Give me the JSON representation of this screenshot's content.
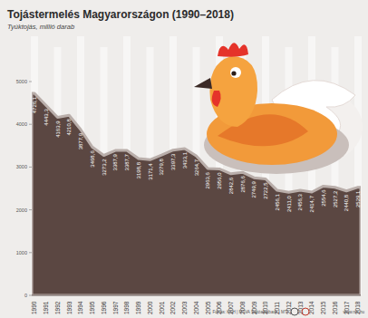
{
  "chart_data": {
    "type": "area",
    "title": "Tojástermelés Magyarországon (1990–2018)",
    "subtitle": "Tyúktojás, millió darab",
    "categories": [
      "1990",
      "1991",
      "1992",
      "1993",
      "1994",
      "1995",
      "1996",
      "1997",
      "1998",
      "1999",
      "2000",
      "2001",
      "2002",
      "2003",
      "2004",
      "2005",
      "2006",
      "2007",
      "2008",
      "2009",
      "2010",
      "2011",
      "2012",
      "2013",
      "2014",
      "2015",
      "2016",
      "2017",
      "2018"
    ],
    "values": [
      4726.1,
      4443.3,
      4163.9,
      4210.8,
      3877.9,
      3468.6,
      3273.2,
      3387.9,
      3387.7,
      3198.8,
      3171.4,
      3279.8,
      3397.3,
      3433.1,
      3264.7,
      2963.6,
      2956.0,
      2842.6,
      2876.6,
      2749.9,
      2722.5,
      2456.1,
      2411.0,
      2456.3,
      2414.7,
      2554.6,
      2527.2,
      2440.8,
      2529.1
    ],
    "value_labels": [
      "4726,1",
      "4443,3",
      "4163,9",
      "4210,8",
      "3877,9",
      "3468,6",
      "3273,2",
      "3387,9",
      "3387,7",
      "3198,8",
      "3171,4",
      "3279,8",
      "3397,3",
      "3433,1",
      "3264,7",
      "2963,6",
      "2956,0",
      "2842,6",
      "2876,6",
      "2749,9",
      "2722,5",
      "2456,1",
      "2411,0",
      "2456,3",
      "2414,7",
      "2554,6",
      "2527,2",
      "2440,8",
      "2529,1"
    ],
    "color": "#5b4742",
    "ylim": [
      0,
      5000
    ],
    "yticks": [
      0,
      1000,
      2000,
      3000,
      4000,
      5000
    ],
    "grid": false,
    "data_labels": true,
    "source": "Forrás: KSH | MTVA Sajtóadatbank | MTI",
    "annotations": [
      "www.mti.hu"
    ]
  }
}
